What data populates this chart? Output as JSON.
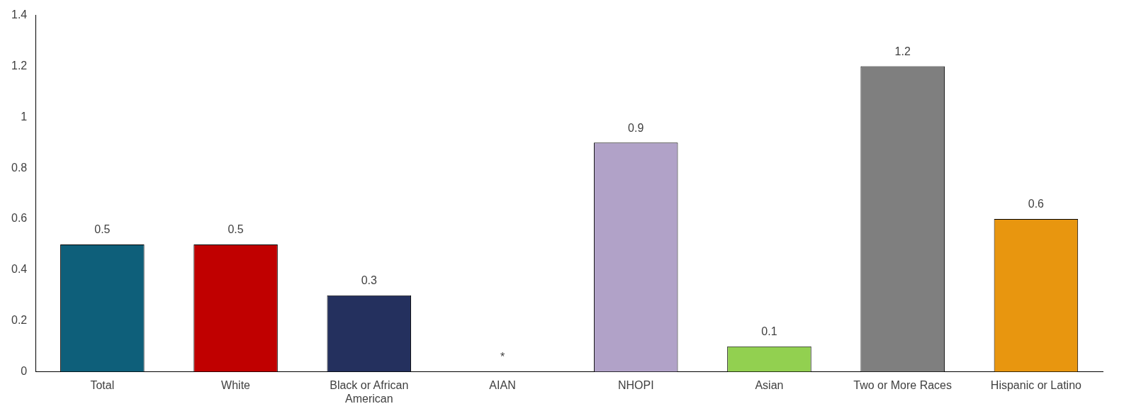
{
  "chart_data": {
    "type": "bar",
    "categories": [
      "Total",
      "White",
      "Black or African American",
      "AIAN",
      "NHOPI",
      "Asian",
      "Two or More Races",
      "Hispanic or Latino"
    ],
    "values": [
      0.5,
      0.5,
      0.3,
      null,
      0.9,
      0.1,
      1.2,
      0.6
    ],
    "colors": [
      "#0e5f7a",
      "#c00000",
      "#24305e",
      null,
      "#b1a2c8",
      "#92d050",
      "#7f7f7f",
      "#e8960f"
    ],
    "value_labels": [
      "0.5",
      "0.5",
      "0.3",
      "*",
      "0.9",
      "0.1",
      "1.2",
      "0.6"
    ],
    "ylim": [
      0,
      1.4
    ],
    "yticks": [
      0,
      0.2,
      0.4,
      0.6,
      0.8,
      1,
      1.2,
      1.4
    ],
    "grid": false,
    "legend": false
  }
}
